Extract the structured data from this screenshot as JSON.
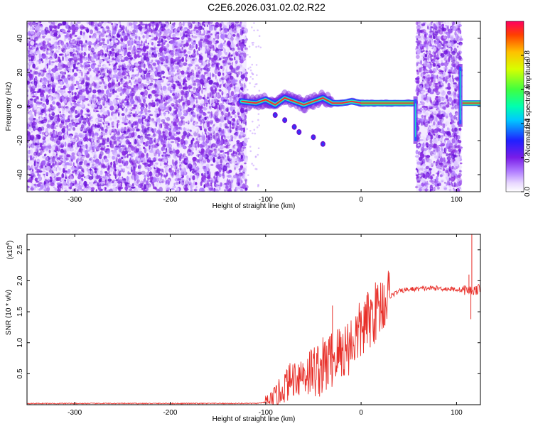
{
  "title": "C2E6.2026.031.02.02.R22",
  "chart_data": [
    {
      "type": "heatmap",
      "name": "spectrogram",
      "xlabel": "Height of straight line (km)",
      "ylabel": "Frequency (Hz)",
      "xlim": [
        -350,
        125
      ],
      "ylim": [
        -50,
        50
      ],
      "xticks": [
        -300,
        -200,
        -100,
        0,
        100
      ],
      "xtick_labels": [
        "-300",
        "-200",
        "-100",
        "0",
        "100"
      ],
      "yticks": [
        -40,
        -20,
        0,
        20,
        40
      ],
      "ytick_labels": [
        "-40",
        "-20",
        "0",
        "20",
        "40"
      ],
      "noise_regions_km": [
        [
          -350,
          -120
        ],
        [
          58,
          105
        ]
      ],
      "signal_trace": {
        "x": [
          -125,
          -110,
          -100,
          -90,
          -80,
          -70,
          -60,
          -50,
          -40,
          -30,
          -20,
          -10,
          0,
          10,
          20,
          30,
          40,
          50,
          55
        ],
        "y": [
          3,
          2,
          4,
          1,
          5,
          3,
          1,
          3,
          5,
          2,
          2,
          3,
          2,
          2,
          2,
          2,
          2,
          2,
          2
        ]
      },
      "branch": {
        "x": [
          -90,
          -80,
          -70,
          -65,
          -50,
          -40
        ],
        "y": [
          -5,
          -8,
          -12,
          -15,
          -18,
          -22
        ]
      },
      "spike_x": [
        57,
        104
      ],
      "colorbar": {
        "label": "Normalized spectral amplitude",
        "ticks": [
          0.0,
          0.2,
          0.4,
          0.6,
          0.8
        ],
        "tick_labels": [
          "0.0",
          "0.2",
          "0.4",
          "0.6",
          "0.8"
        ]
      }
    },
    {
      "type": "line",
      "name": "snr",
      "xlabel": "Height of straight line (km)",
      "ylabel": "SNR (10 * v/v)",
      "y_multiplier": "(x10",
      "y_multiplier_exp": "4",
      "y_multiplier_close": ")",
      "xlim": [
        -350,
        125
      ],
      "ylim": [
        0,
        2.75
      ],
      "xticks": [
        -300,
        -200,
        -100,
        0,
        100
      ],
      "xtick_labels": [
        "-300",
        "-200",
        "-100",
        "0",
        "100"
      ],
      "yticks": [
        0.5,
        1.0,
        1.5,
        2.0,
        2.5
      ],
      "ytick_labels": [
        "0.5",
        "1.0",
        "1.5",
        "2.0",
        "2.5"
      ],
      "color": "#e8302a",
      "series": [
        {
          "name": "SNR",
          "x": [
            -350,
            -300,
            -200,
            -130,
            -110,
            -100,
            -90,
            -80,
            -70,
            -60,
            -50,
            -40,
            -30,
            -20,
            -10,
            0,
            10,
            20,
            30,
            40,
            50,
            60,
            70,
            80,
            90,
            100,
            110,
            115,
            120,
            125
          ],
          "y": [
            0.02,
            0.02,
            0.02,
            0.02,
            0.02,
            0.04,
            0.1,
            0.3,
            0.45,
            0.5,
            0.55,
            0.6,
            0.75,
            0.85,
            1.0,
            1.2,
            1.4,
            1.6,
            1.75,
            1.83,
            1.86,
            1.87,
            1.88,
            1.88,
            1.87,
            1.86,
            1.85,
            1.84,
            1.85,
            1.87
          ]
        }
      ],
      "spikes": [
        {
          "x": -30,
          "y": 1.6
        },
        {
          "x": 113,
          "y": 2.1
        },
        {
          "x": 116,
          "y": 2.75
        },
        {
          "x": 115,
          "y": 1.38
        }
      ]
    }
  ]
}
